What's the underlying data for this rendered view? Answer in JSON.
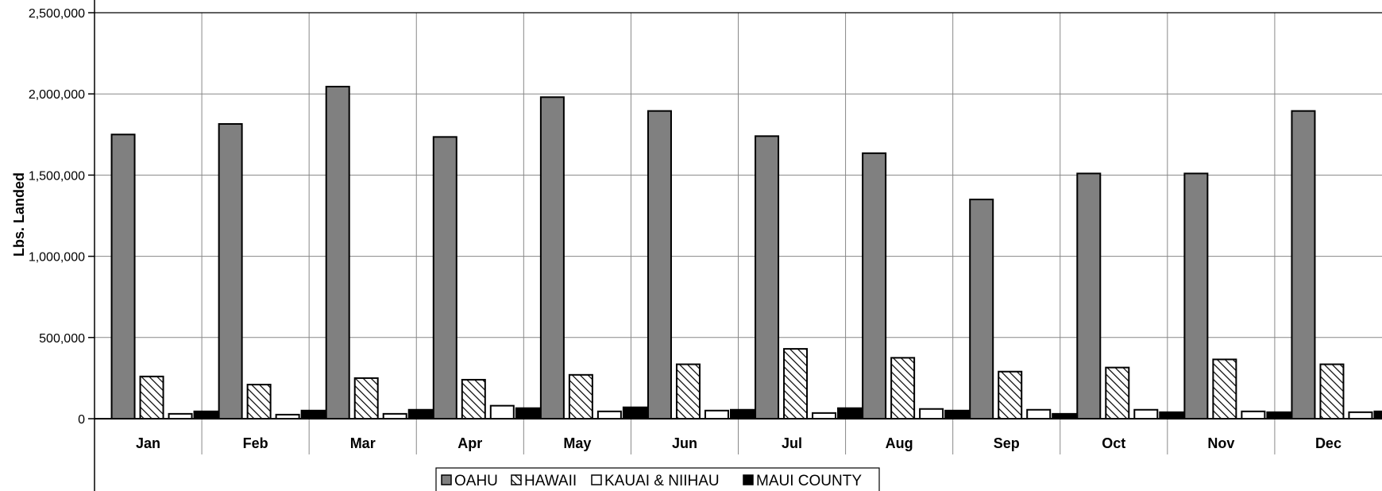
{
  "chart_data": {
    "type": "bar",
    "ylabel": "Lbs. Landed",
    "xlabel": "",
    "ylim": [
      0,
      2500000
    ],
    "yticks": [
      0,
      500000,
      1000000,
      1500000,
      2000000,
      2500000
    ],
    "ytick_labels": [
      "0",
      "500,000",
      "1,000,000",
      "1,500,000",
      "2,000,000",
      "2,500,000"
    ],
    "grid": true,
    "legend_position": "bottom",
    "categories": [
      "Jan",
      "Feb",
      "Mar",
      "Apr",
      "May",
      "Jun",
      "Jul",
      "Aug",
      "Sep",
      "Oct",
      "Nov",
      "Dec"
    ],
    "series": [
      {
        "name": "OAHU",
        "style": "solid-gray",
        "color": "#808080",
        "values": [
          1750000,
          1815000,
          2045000,
          1735000,
          1980000,
          1895000,
          1740000,
          1635000,
          1350000,
          1510000,
          1510000,
          1895000
        ]
      },
      {
        "name": "HAWAII",
        "style": "hatched",
        "color": "#ffffff",
        "values": [
          260000,
          210000,
          250000,
          240000,
          270000,
          335000,
          430000,
          375000,
          290000,
          315000,
          365000,
          335000
        ]
      },
      {
        "name": "KAUAI & NIIHAU",
        "style": "solid-white",
        "color": "#ffffff",
        "values": [
          30000,
          25000,
          30000,
          80000,
          45000,
          50000,
          35000,
          60000,
          55000,
          55000,
          45000,
          40000
        ]
      },
      {
        "name": "MAUI COUNTY",
        "style": "solid-black",
        "color": "#000000",
        "values": [
          45000,
          50000,
          55000,
          65000,
          70000,
          55000,
          65000,
          50000,
          30000,
          40000,
          40000,
          45000
        ]
      }
    ]
  }
}
